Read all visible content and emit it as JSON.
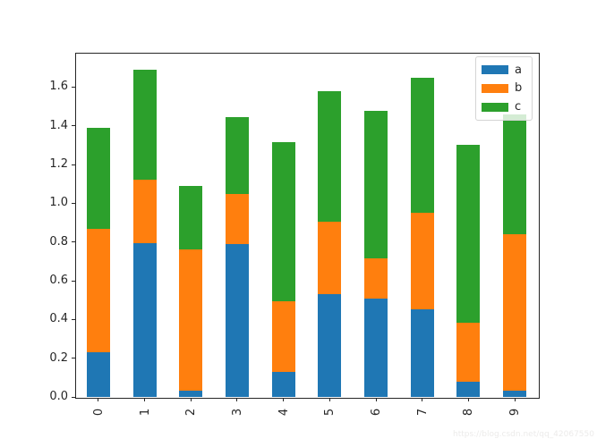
{
  "watermark": "https://blog.csdn.net/qq_42067550",
  "chart_data": {
    "type": "bar",
    "stacked": true,
    "title": "",
    "xlabel": "",
    "ylabel": "",
    "grid": false,
    "legend_position": "upper right",
    "xtick_rotation": 90,
    "categories": [
      "0",
      "1",
      "2",
      "3",
      "4",
      "5",
      "6",
      "7",
      "8",
      "9"
    ],
    "series": [
      {
        "name": "a",
        "color": "#1f77b4",
        "values": [
          0.233,
          0.792,
          0.031,
          0.789,
          0.128,
          0.531,
          0.509,
          0.451,
          0.077,
          0.031
        ]
      },
      {
        "name": "b",
        "color": "#ff7f0e",
        "values": [
          0.633,
          0.33,
          0.73,
          0.261,
          0.364,
          0.373,
          0.208,
          0.499,
          0.308,
          0.807
        ]
      },
      {
        "name": "c",
        "color": "#2ca02c",
        "values": [
          0.525,
          0.565,
          0.33,
          0.395,
          0.822,
          0.676,
          0.758,
          0.696,
          0.917,
          0.619
        ]
      }
    ],
    "stacked_totals": [
      1.391,
      1.687,
      1.091,
      1.445,
      1.314,
      1.58,
      1.475,
      1.646,
      1.302,
      1.457
    ],
    "ylim": [
      0,
      1.777
    ],
    "yticks": [
      0.0,
      0.2,
      0.4,
      0.6,
      0.8,
      1.0,
      1.2,
      1.4,
      1.6
    ],
    "ytick_labels": [
      "0.0",
      "0.2",
      "0.4",
      "0.6",
      "0.8",
      "1.0",
      "1.2",
      "1.4",
      "1.6"
    ]
  }
}
